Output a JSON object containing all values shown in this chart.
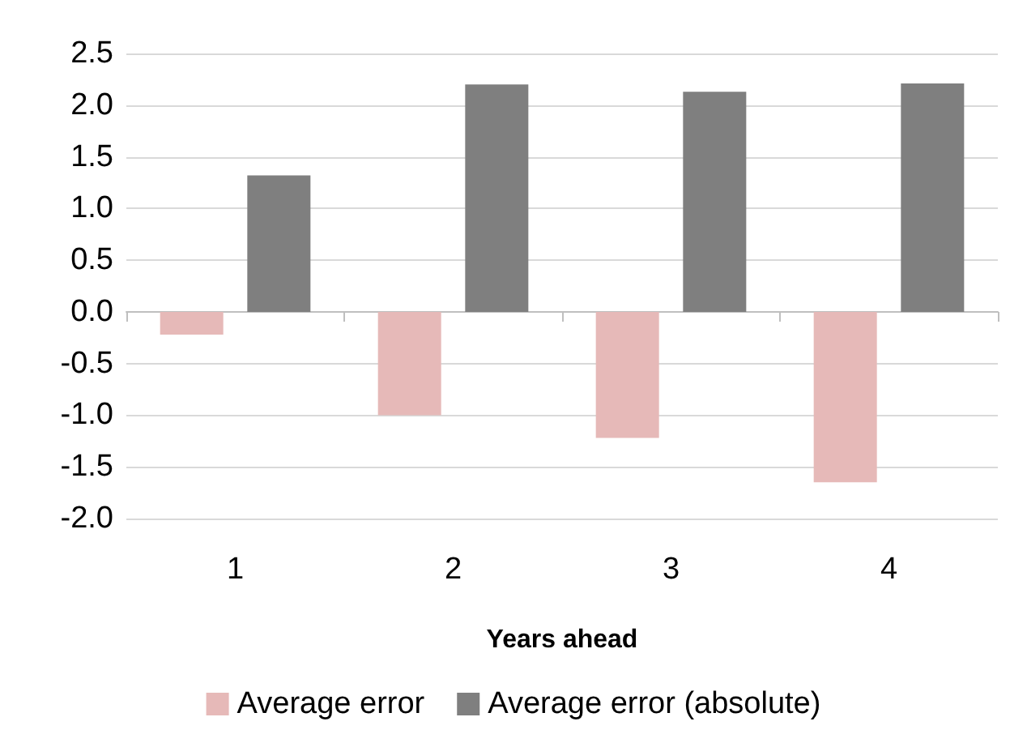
{
  "chart_data": {
    "type": "bar",
    "xlabel": "Years ahead",
    "categories": [
      "1",
      "2",
      "3",
      "4"
    ],
    "series": [
      {
        "name": "Average error",
        "color": "#e6b9b8",
        "values": [
          -0.22,
          -1.0,
          -1.22,
          -1.65
        ]
      },
      {
        "name": "Average error (absolute)",
        "color": "#7f7f7f",
        "values": [
          1.32,
          2.2,
          2.13,
          2.21
        ]
      }
    ],
    "ylim": [
      -2.0,
      2.5
    ],
    "yticks": [
      {
        "value": -2.0,
        "label": "-2.0"
      },
      {
        "value": -1.5,
        "label": "-1.5"
      },
      {
        "value": -1.0,
        "label": "-1.0"
      },
      {
        "value": -0.5,
        "label": "-0.5"
      },
      {
        "value": 0,
        "label": "0.0"
      },
      {
        "value": 0.5,
        "label": "0.5"
      },
      {
        "value": 1.0,
        "label": "1.0"
      },
      {
        "value": 1.5,
        "label": "1.5"
      },
      {
        "value": 2.0,
        "label": "2.0"
      },
      {
        "value": 2.5,
        "label": "2.5"
      }
    ],
    "grid": "y",
    "legend": "bottom"
  }
}
